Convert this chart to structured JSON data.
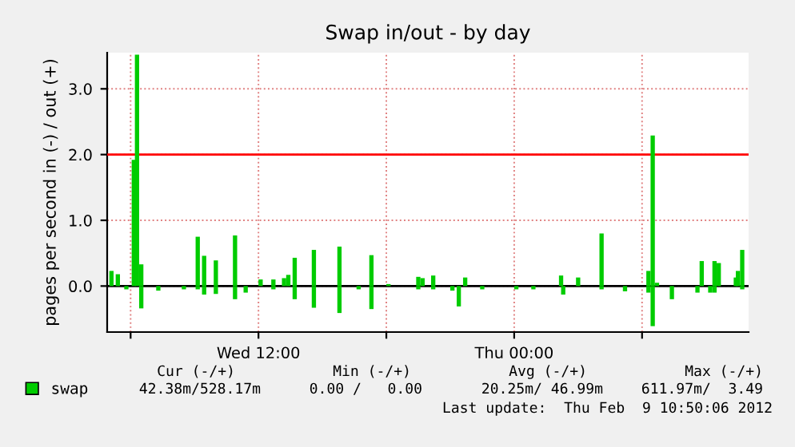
{
  "chart_data": {
    "type": "bar",
    "title": "Swap in/out - by day",
    "ylabel": "pages per second in (-) / out (+)",
    "x": [
      "2012-02-08T05:06",
      "2012-02-08T05:24",
      "2012-02-08T05:48",
      "2012-02-08T06:09",
      "2012-02-08T06:18",
      "2012-02-08T06:30",
      "2012-02-08T07:18",
      "2012-02-08T08:30",
      "2012-02-08T09:09",
      "2012-02-08T09:27",
      "2012-02-08T10:00",
      "2012-02-08T10:54",
      "2012-02-08T11:24",
      "2012-02-08T12:06",
      "2012-02-08T12:42",
      "2012-02-08T13:12",
      "2012-02-08T13:24",
      "2012-02-08T13:42",
      "2012-02-08T14:36",
      "2012-02-08T15:48",
      "2012-02-08T16:42",
      "2012-02-08T17:18",
      "2012-02-08T18:06",
      "2012-02-08T19:30",
      "2012-02-08T19:42",
      "2012-02-08T20:12",
      "2012-02-08T21:06",
      "2012-02-08T21:24",
      "2012-02-08T21:42",
      "2012-02-08T22:30",
      "2012-02-09T00:06",
      "2012-02-09T00:54",
      "2012-02-09T02:12",
      "2012-02-09T02:18",
      "2012-02-09T03:00",
      "2012-02-09T04:06",
      "2012-02-09T05:12",
      "2012-02-09T06:18",
      "2012-02-09T06:30",
      "2012-02-09T06:42",
      "2012-02-09T07:24",
      "2012-02-09T08:36",
      "2012-02-09T08:48",
      "2012-02-09T09:12",
      "2012-02-09T09:24",
      "2012-02-09T09:36",
      "2012-02-09T10:24",
      "2012-02-09T10:30",
      "2012-02-09T10:42"
    ],
    "series": [
      {
        "name": "swap",
        "color": "#00cc00",
        "values": [
          0.23,
          0.18,
          0,
          1.92,
          3.52,
          0.33,
          0,
          0,
          0.75,
          0.46,
          0.39,
          0.77,
          0,
          0.1,
          0.1,
          0.12,
          0.17,
          0.43,
          0.55,
          0.6,
          0,
          0.47,
          0.03,
          0.14,
          0.12,
          0.16,
          0,
          0,
          0.13,
          0,
          0,
          0,
          0.16,
          0,
          0.13,
          0.8,
          0,
          0.23,
          2.29,
          0.05,
          0,
          0,
          0.38,
          0,
          0.38,
          0.35,
          0.13,
          0.23,
          0.55
        ]
      },
      {
        "color": "#00cc00",
        "values": [
          0,
          0,
          -0.05,
          0,
          0,
          -0.34,
          -0.07,
          -0.05,
          -0.05,
          -0.13,
          -0.12,
          -0.2,
          -0.1,
          0,
          -0.05,
          0,
          0,
          -0.2,
          -0.33,
          -0.41,
          -0.05,
          -0.35,
          0,
          -0.05,
          0,
          -0.05,
          -0.07,
          -0.31,
          0,
          -0.05,
          -0.05,
          -0.05,
          0,
          -0.13,
          0,
          -0.05,
          -0.08,
          -0.1,
          -0.61,
          0,
          -0.2,
          -0.1,
          0,
          -0.1,
          -0.1,
          0,
          0,
          0,
          -0.05
        ]
      }
    ],
    "xlim": [
      "2012-02-08T04:54",
      "2012-02-09T11:00"
    ],
    "ylim": [
      -0.7,
      3.55
    ],
    "xticks": [
      {
        "value": "2012-02-08T06:00",
        "label": null
      },
      {
        "value": "2012-02-08T12:00",
        "label": "Wed 12:00"
      },
      {
        "value": "2012-02-08T18:00",
        "label": null
      },
      {
        "value": "2012-02-09T00:00",
        "label": "Thu 00:00"
      },
      {
        "value": "2012-02-09T06:00",
        "label": null
      }
    ],
    "yticks": [
      {
        "value": 0,
        "label": "0.0"
      },
      {
        "value": 1,
        "label": "1.0"
      },
      {
        "value": 2,
        "label": "2.0"
      },
      {
        "value": 3,
        "label": "3.0"
      }
    ],
    "ref_lines": [
      {
        "axis": "y",
        "value": 2,
        "color": "#ff0000"
      },
      {
        "axis": "y",
        "value": 0,
        "color": "#000000"
      }
    ],
    "grid": true,
    "legend": "bottom left",
    "annotations": [
      "Cur (-/+)",
      "Min (-/+)",
      "Avg (-/+)",
      "Max (-/+)",
      "42.38m/528.17m",
      "0.00 /   0.00",
      "20.25m/ 46.99m",
      "611.97m/  3.49",
      "Last update:  Thu Feb  9 10:50:06 2012"
    ]
  }
}
